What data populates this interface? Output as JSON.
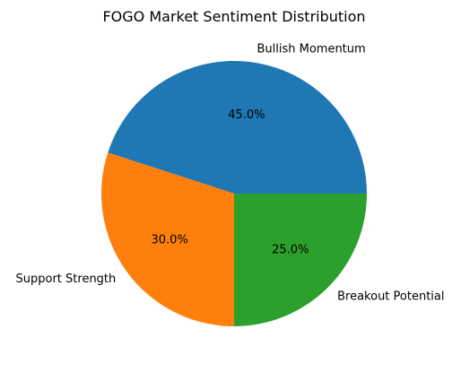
{
  "chart_data": {
    "type": "pie",
    "title": "FOGO Market Sentiment Distribution",
    "categories": [
      "Bullish Momentum",
      "Support Strength",
      "Breakout Potential"
    ],
    "values": [
      45.0,
      30.0,
      25.0
    ],
    "percent_labels": [
      "45.0%",
      "30.0%",
      "25.0%"
    ],
    "colors": [
      "#1f77b4",
      "#ff7f0e",
      "#2ca02c"
    ],
    "start_angle_deg": 0,
    "direction": "counterclockwise",
    "legend": "none"
  }
}
